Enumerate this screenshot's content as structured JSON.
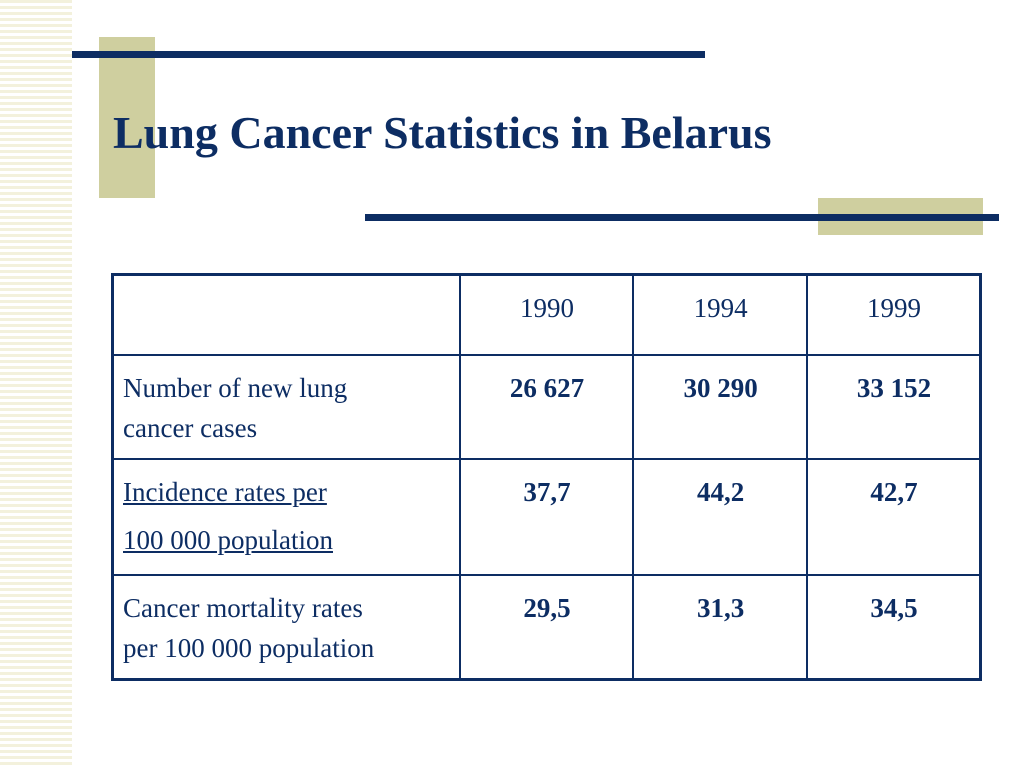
{
  "slide": {
    "title": "Lung Cancer Statistics in Belarus"
  },
  "table": {
    "header": [
      "",
      "1990",
      "1994",
      "1999"
    ],
    "rows": [
      {
        "label_lines": [
          "Number of new lung",
          "cancer cases"
        ],
        "values": [
          "26 627",
          "30 290",
          "33 152"
        ]
      },
      {
        "label_lines": [
          "Incidence rates per",
          "100 000 population"
        ],
        "values": [
          "37,7",
          "44,2",
          "42,7"
        ]
      },
      {
        "label_lines": [
          "Cancer mortality rates",
          "per 100 000 population"
        ],
        "values": [
          "29,5",
          "31,3",
          "34,5"
        ]
      }
    ]
  },
  "colors": {
    "navy": "#0d2d63",
    "olive_accent": "#cfcf9f",
    "stripe": "#f3f1dc"
  }
}
